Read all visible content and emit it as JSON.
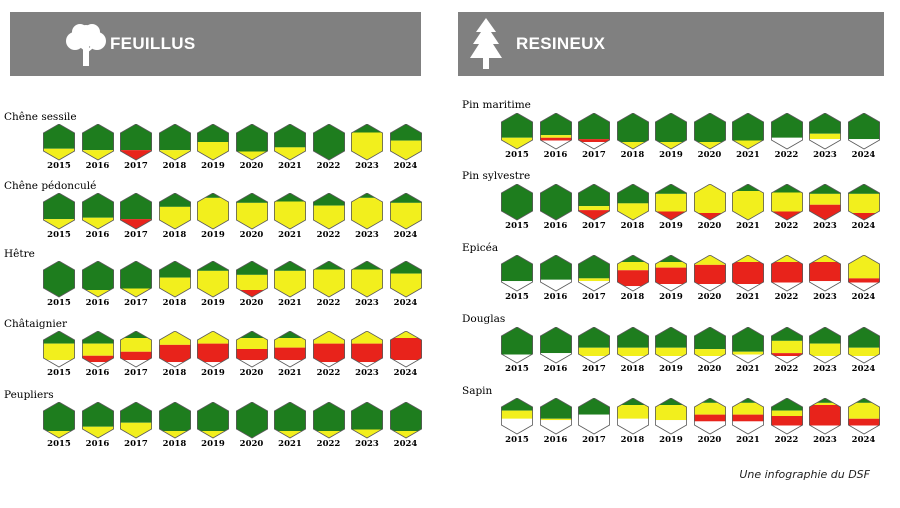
{
  "colors": {
    "green": "#1e7d1e",
    "yellow": "#f2ef1d",
    "red": "#e8231b",
    "white": "#ffffff",
    "header_bg": "#808080"
  },
  "panels": {
    "feuillus": {
      "title": "FEUILLUS",
      "icon": "deciduous-tree-icon"
    },
    "resineux": {
      "title": "RESINEUX",
      "icon": "conifer-tree-icon"
    }
  },
  "credit": "Une infographie du DSF",
  "chart_data": {
    "type": "hexagon-state-grid",
    "years": [
      "2015",
      "2016",
      "2017",
      "2018",
      "2019",
      "2020",
      "2021",
      "2022",
      "2023",
      "2024"
    ],
    "feuillus": [
      {
        "species": "Chêne sessile",
        "states": [
          {
            "g": 0.75,
            "y": 0.25,
            "r": 0,
            "w": 0
          },
          {
            "g": 0.8,
            "y": 0.2,
            "r": 0,
            "w": 0
          },
          {
            "g": 0.8,
            "y": 0,
            "r": 0.2,
            "w": 0
          },
          {
            "g": 0.8,
            "y": 0.2,
            "r": 0,
            "w": 0
          },
          {
            "g": 0.5,
            "y": 0.5,
            "r": 0,
            "w": 0
          },
          {
            "g": 0.85,
            "y": 0.15,
            "r": 0,
            "w": 0
          },
          {
            "g": 0.7,
            "y": 0.3,
            "r": 0,
            "w": 0
          },
          {
            "g": 1,
            "y": 0,
            "r": 0,
            "w": 0
          },
          {
            "g": 0.15,
            "y": 0.85,
            "r": 0,
            "w": 0
          },
          {
            "g": 0.45,
            "y": 0.55,
            "r": 0,
            "w": 0
          }
        ]
      },
      {
        "species": "Chêne pédonculé",
        "states": [
          {
            "g": 0.8,
            "y": 0.2,
            "r": 0,
            "w": 0
          },
          {
            "g": 0.75,
            "y": 0.25,
            "r": 0,
            "w": 0
          },
          {
            "g": 0.8,
            "y": 0,
            "r": 0.2,
            "w": 0
          },
          {
            "g": 0.35,
            "y": 0.65,
            "r": 0,
            "w": 0
          },
          {
            "g": 0.05,
            "y": 0.95,
            "r": 0,
            "w": 0
          },
          {
            "g": 0.2,
            "y": 0.8,
            "r": 0,
            "w": 0
          },
          {
            "g": 0.15,
            "y": 0.85,
            "r": 0,
            "w": 0
          },
          {
            "g": 0.3,
            "y": 0.7,
            "r": 0,
            "w": 0
          },
          {
            "g": 0.05,
            "y": 0.95,
            "r": 0,
            "w": 0
          },
          {
            "g": 0.2,
            "y": 0.8,
            "r": 0,
            "w": 0
          }
        ]
      },
      {
        "species": "Hêtre",
        "states": [
          {
            "g": 1,
            "y": 0,
            "r": 0,
            "w": 0
          },
          {
            "g": 0.9,
            "y": 0.1,
            "r": 0,
            "w": 0
          },
          {
            "g": 0.85,
            "y": 0.15,
            "r": 0,
            "w": 0
          },
          {
            "g": 0.45,
            "y": 0.55,
            "r": 0,
            "w": 0
          },
          {
            "g": 0.2,
            "y": 0.8,
            "r": 0,
            "w": 0
          },
          {
            "g": 0.35,
            "y": 0.55,
            "r": 0.1,
            "w": 0
          },
          {
            "g": 0.2,
            "y": 0.8,
            "r": 0,
            "w": 0
          },
          {
            "g": 0.15,
            "y": 0.85,
            "r": 0,
            "w": 0
          },
          {
            "g": 0.15,
            "y": 0.85,
            "r": 0,
            "w": 0
          },
          {
            "g": 0.3,
            "y": 0.7,
            "r": 0,
            "w": 0
          }
        ]
      },
      {
        "species": "Châtaignier",
        "states": [
          {
            "g": 0.3,
            "y": 0.6,
            "r": 0,
            "w": 0.1
          },
          {
            "g": 0.3,
            "y": 0.45,
            "r": 0.2,
            "w": 0.05
          },
          {
            "g": 0.1,
            "y": 0.5,
            "r": 0.3,
            "w": 0.1
          },
          {
            "g": 0,
            "y": 0.35,
            "r": 0.6,
            "w": 0.05
          },
          {
            "g": 0,
            "y": 0.3,
            "r": 0.65,
            "w": 0.05
          },
          {
            "g": 0.1,
            "y": 0.4,
            "r": 0.4,
            "w": 0.1
          },
          {
            "g": 0.1,
            "y": 0.35,
            "r": 0.45,
            "w": 0.1
          },
          {
            "g": 0,
            "y": 0.3,
            "r": 0.65,
            "w": 0.05
          },
          {
            "g": 0,
            "y": 0.3,
            "r": 0.65,
            "w": 0.05
          },
          {
            "g": 0,
            "y": 0.1,
            "r": 0.8,
            "w": 0.1
          }
        ]
      },
      {
        "species": "Peupliers",
        "states": [
          {
            "g": 0.9,
            "y": 0.1,
            "r": 0,
            "w": 0
          },
          {
            "g": 0.75,
            "y": 0.25,
            "r": 0,
            "w": 0
          },
          {
            "g": 0.6,
            "y": 0.4,
            "r": 0,
            "w": 0
          },
          {
            "g": 0.9,
            "y": 0.1,
            "r": 0,
            "w": 0
          },
          {
            "g": 0.9,
            "y": 0.1,
            "r": 0,
            "w": 0
          },
          {
            "g": 1,
            "y": 0,
            "r": 0,
            "w": 0
          },
          {
            "g": 0.9,
            "y": 0.1,
            "r": 0,
            "w": 0
          },
          {
            "g": 0.9,
            "y": 0.1,
            "r": 0,
            "w": 0
          },
          {
            "g": 0.85,
            "y": 0.15,
            "r": 0,
            "w": 0
          },
          {
            "g": 0.9,
            "y": 0.1,
            "r": 0,
            "w": 0
          }
        ]
      }
    ],
    "resineux": [
      {
        "species": "Pin maritime",
        "states": [
          {
            "g": 0.75,
            "y": 0.25,
            "r": 0,
            "w": 0
          },
          {
            "g": 0.65,
            "y": 0.1,
            "r": 0.1,
            "w": 0.15
          },
          {
            "g": 0.8,
            "y": 0,
            "r": 0.1,
            "w": 0.1
          },
          {
            "g": 0.9,
            "y": 0.1,
            "r": 0,
            "w": 0
          },
          {
            "g": 0.9,
            "y": 0.1,
            "r": 0,
            "w": 0
          },
          {
            "g": 0.9,
            "y": 0.1,
            "r": 0,
            "w": 0
          },
          {
            "g": 0.85,
            "y": 0.15,
            "r": 0,
            "w": 0
          },
          {
            "g": 0.75,
            "y": 0,
            "r": 0,
            "w": 0.25
          },
          {
            "g": 0.6,
            "y": 0.2,
            "r": 0,
            "w": 0.2
          },
          {
            "g": 0.8,
            "y": 0,
            "r": 0,
            "w": 0.2
          }
        ]
      },
      {
        "species": "Pin sylvestre",
        "states": [
          {
            "g": 1,
            "y": 0,
            "r": 0,
            "w": 0
          },
          {
            "g": 1,
            "y": 0,
            "r": 0,
            "w": 0
          },
          {
            "g": 0.65,
            "y": 0.15,
            "r": 0.2,
            "w": 0
          },
          {
            "g": 0.55,
            "y": 0.45,
            "r": 0,
            "w": 0
          },
          {
            "g": 0.2,
            "y": 0.65,
            "r": 0.15,
            "w": 0
          },
          {
            "g": 0,
            "y": 0.9,
            "r": 0.1,
            "w": 0
          },
          {
            "g": 0.1,
            "y": 0.9,
            "r": 0,
            "w": 0
          },
          {
            "g": 0.15,
            "y": 0.7,
            "r": 0.15,
            "w": 0
          },
          {
            "g": 0.2,
            "y": 0.4,
            "r": 0.4,
            "w": 0
          },
          {
            "g": 0.2,
            "y": 0.7,
            "r": 0.1,
            "w": 0
          }
        ]
      },
      {
        "species": "Epicéa",
        "states": [
          {
            "g": 0.8,
            "y": 0,
            "r": 0,
            "w": 0.2
          },
          {
            "g": 0.75,
            "y": 0,
            "r": 0,
            "w": 0.25
          },
          {
            "g": 0.7,
            "y": 0.1,
            "r": 0,
            "w": 0.2
          },
          {
            "g": 0.1,
            "y": 0.3,
            "r": 0.55,
            "w": 0.05
          },
          {
            "g": 0.1,
            "y": 0.2,
            "r": 0.6,
            "w": 0.1
          },
          {
            "g": 0,
            "y": 0.2,
            "r": 0.7,
            "w": 0.1
          },
          {
            "g": 0,
            "y": 0.1,
            "r": 0.8,
            "w": 0.1
          },
          {
            "g": 0,
            "y": 0.1,
            "r": 0.75,
            "w": 0.15
          },
          {
            "g": 0,
            "y": 0.1,
            "r": 0.7,
            "w": 0.2
          },
          {
            "g": 0,
            "y": 0.7,
            "r": 0.15,
            "w": 0.15
          }
        ]
      },
      {
        "species": "Douglas",
        "states": [
          {
            "g": 0.85,
            "y": 0,
            "r": 0,
            "w": 0.15
          },
          {
            "g": 0.8,
            "y": 0,
            "r": 0,
            "w": 0.2
          },
          {
            "g": 0.6,
            "y": 0.3,
            "r": 0,
            "w": 0.1
          },
          {
            "g": 0.6,
            "y": 0.3,
            "r": 0,
            "w": 0.1
          },
          {
            "g": 0.6,
            "y": 0.3,
            "r": 0,
            "w": 0.1
          },
          {
            "g": 0.65,
            "y": 0.25,
            "r": 0,
            "w": 0.1
          },
          {
            "g": 0.75,
            "y": 0.1,
            "r": 0,
            "w": 0.15
          },
          {
            "g": 0.35,
            "y": 0.45,
            "r": 0.1,
            "w": 0.1
          },
          {
            "g": 0.45,
            "y": 0.45,
            "r": 0,
            "w": 0.1
          },
          {
            "g": 0.6,
            "y": 0.3,
            "r": 0,
            "w": 0.1
          }
        ]
      },
      {
        "species": "Sapin",
        "states": [
          {
            "g": 0.3,
            "y": 0.3,
            "r": 0,
            "w": 0.4
          },
          {
            "g": 0.6,
            "y": 0.05,
            "r": 0,
            "w": 0.35
          },
          {
            "g": 0.45,
            "y": 0,
            "r": 0,
            "w": 0.55
          },
          {
            "g": 0.1,
            "y": 0.5,
            "r": 0,
            "w": 0.4
          },
          {
            "g": 0.1,
            "y": 0.55,
            "r": 0,
            "w": 0.35
          },
          {
            "g": 0.05,
            "y": 0.4,
            "r": 0.25,
            "w": 0.3
          },
          {
            "g": 0.05,
            "y": 0.4,
            "r": 0.25,
            "w": 0.3
          },
          {
            "g": 0.3,
            "y": 0.2,
            "r": 0.35,
            "w": 0.15
          },
          {
            "g": 0.05,
            "y": 0.05,
            "r": 0.75,
            "w": 0.15
          },
          {
            "g": 0.05,
            "y": 0.55,
            "r": 0.25,
            "w": 0.15
          }
        ]
      }
    ]
  }
}
